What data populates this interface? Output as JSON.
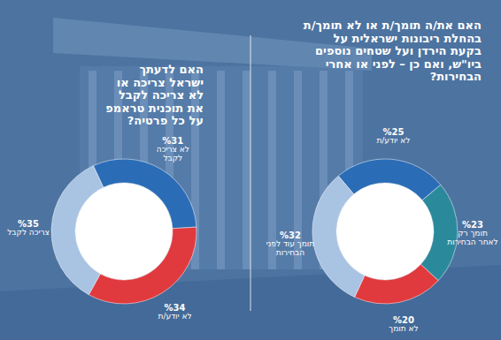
{
  "chart_data": [
    {
      "type": "pie",
      "title": "האם לדעתך ישראל צריכה או לא צריכה לקבל את תוכנית טראמפ על כל פרטיה?",
      "categories": [
        "לא צריכה לקבל",
        "לא יודע/ת",
        "צריכה לקבל"
      ],
      "values": [
        31,
        34,
        35
      ],
      "value_labels": [
        "%31",
        "%34",
        "%35"
      ],
      "colors": [
        "#2b6cb6",
        "#e03a3e",
        "#a9c3e3"
      ],
      "data_labels": true
    },
    {
      "type": "pie",
      "title": "האם את/ה תומך/ת או לא תומך/ת בהחלת ריבונות ישראלית על בקעת הירדן ועל שטחים נוספים ביו\"ש, ואם כן – לפני או אחרי הבחירות?",
      "categories": [
        "לא יודע/ת",
        "תומך רק לאחר הבחירות",
        "לא תומך",
        "תומך עוד לפני הבחירות"
      ],
      "values": [
        25,
        23,
        20,
        32
      ],
      "value_labels": [
        "%25",
        "%23",
        "%20",
        "%32"
      ],
      "colors": [
        "#2b6cb6",
        "#2a8a9c",
        "#e03a3e",
        "#a9c3e3"
      ],
      "data_labels": true
    }
  ]
}
